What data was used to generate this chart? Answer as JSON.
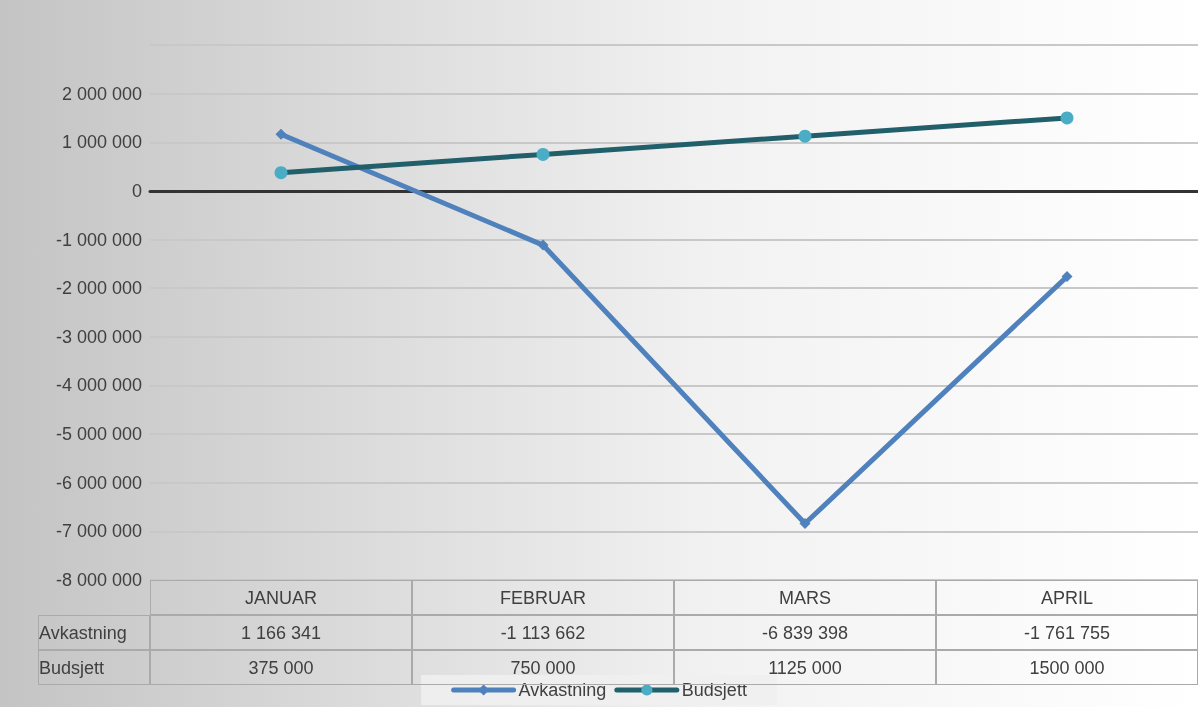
{
  "chart_data": {
    "type": "line",
    "categories": [
      "JANUAR",
      "FEBRUAR",
      "MARS",
      "APRIL"
    ],
    "series": [
      {
        "name": "Avkastning",
        "color": "#4f81bd",
        "marker": "diamond",
        "values": [
          1166341,
          -1113662,
          -6839398,
          -1761755
        ],
        "value_labels": [
          "1 166 341",
          "-1 113 662",
          "-6 839 398",
          "-1 761 755"
        ]
      },
      {
        "name": "Budsjett",
        "color": "#215f6a",
        "marker": "circle",
        "values": [
          375000,
          750000,
          1125000,
          1500000
        ],
        "value_labels": [
          "375 000",
          "750 000",
          "1125 000",
          "1500 000"
        ]
      }
    ],
    "ylim": [
      -8000000,
      3000000
    ],
    "yticks": [
      {
        "value": -8000000,
        "label": "-8 000 000"
      },
      {
        "value": -7000000,
        "label": "-7 000 000"
      },
      {
        "value": -6000000,
        "label": "-6 000 000"
      },
      {
        "value": -5000000,
        "label": "-5 000 000"
      },
      {
        "value": -4000000,
        "label": "-4 000 000"
      },
      {
        "value": -3000000,
        "label": "-3 000 000"
      },
      {
        "value": -2000000,
        "label": "-2 000 000"
      },
      {
        "value": -1000000,
        "label": "-1 000 000"
      },
      {
        "value": 0,
        "label": "0"
      },
      {
        "value": 1000000,
        "label": "1 000 000"
      },
      {
        "value": 2000000,
        "label": "2 000 000"
      },
      {
        "value": 3000000,
        "label": null
      }
    ],
    "grid": "y",
    "legend": "bottom",
    "line_style": "solid"
  }
}
